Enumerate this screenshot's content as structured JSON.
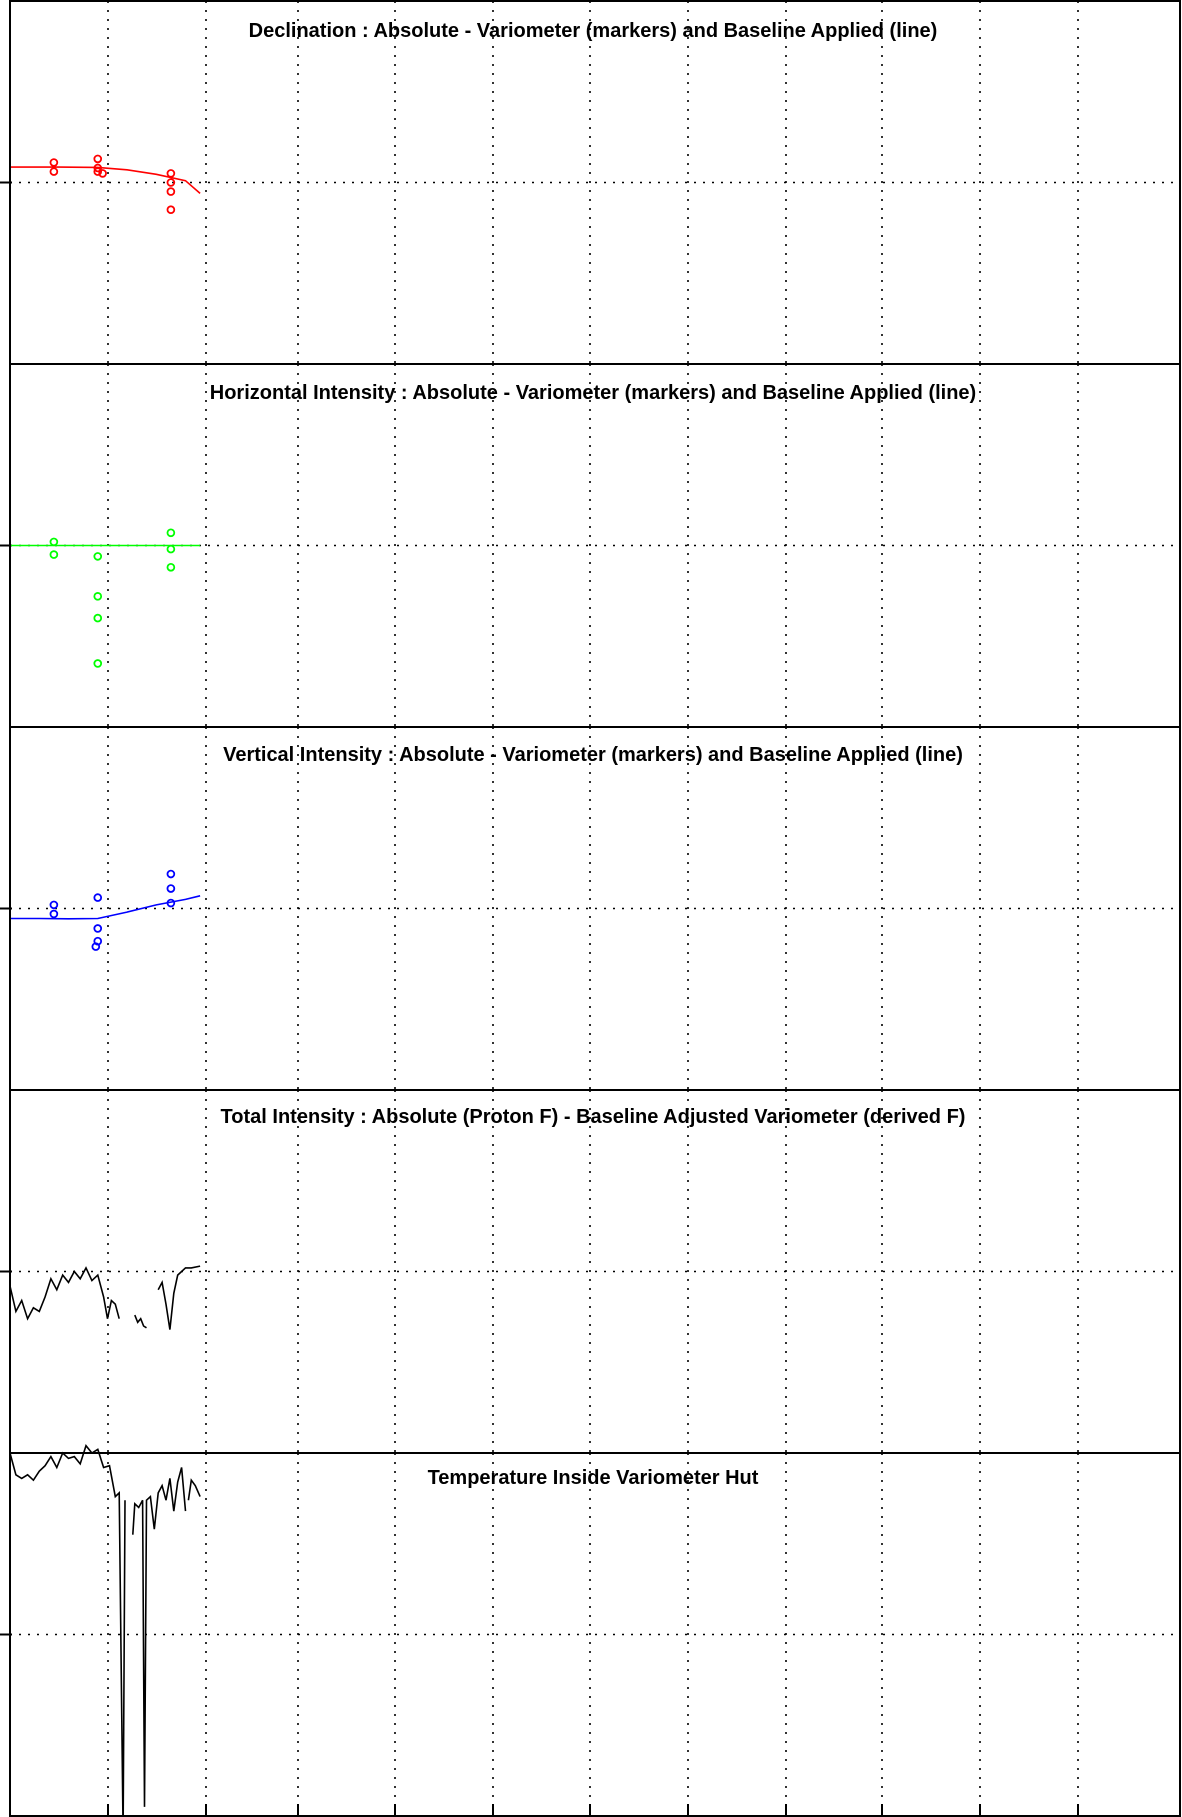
{
  "chart_data": [
    {
      "type": "scatter",
      "title": "Declination : Absolute - Variometer (markers) and Baseline Applied (line)",
      "color": "#ff0000",
      "xlim": [
        0,
        12
      ],
      "ylim": [
        -1,
        1
      ],
      "markers": {
        "x": [
          0.45,
          0.45,
          0.9,
          0.9,
          0.9,
          0.95,
          1.65,
          1.65,
          1.65,
          1.65
        ],
        "y": [
          0.11,
          0.06,
          0.13,
          0.08,
          0.06,
          0.05,
          0.05,
          0.0,
          -0.05,
          -0.15
        ]
      },
      "baseline": {
        "x": [
          0.0,
          0.5,
          0.9,
          1.2,
          1.5,
          1.8,
          1.95
        ],
        "y": [
          0.085,
          0.085,
          0.083,
          0.07,
          0.045,
          0.01,
          -0.06
        ]
      }
    },
    {
      "type": "scatter",
      "title": "Horizontal Intensity : Absolute - Variometer (markers) and Baseline Applied (line)",
      "color": "#00ff00",
      "xlim": [
        0,
        12
      ],
      "ylim": [
        -1,
        1
      ],
      "markers": {
        "x": [
          0.45,
          0.45,
          0.9,
          0.9,
          0.9,
          0.9,
          1.65,
          1.65,
          1.65
        ],
        "y": [
          0.02,
          -0.05,
          -0.06,
          -0.28,
          -0.4,
          -0.65,
          0.07,
          -0.02,
          -0.12
        ]
      },
      "baseline": {
        "x": [
          0.0,
          1.95
        ],
        "y": [
          0.0,
          0.0
        ]
      }
    },
    {
      "type": "scatter",
      "title": "Vertical Intensity : Absolute - Variometer (markers) and Baseline Applied (line)",
      "color": "#0000ff",
      "xlim": [
        0,
        12
      ],
      "ylim": [
        -1,
        1
      ],
      "markers": {
        "x": [
          0.45,
          0.45,
          0.9,
          0.9,
          0.9,
          0.88,
          1.65,
          1.65,
          1.65
        ],
        "y": [
          0.02,
          -0.03,
          0.06,
          -0.11,
          -0.18,
          -0.21,
          0.19,
          0.11,
          0.03
        ]
      },
      "baseline": {
        "x": [
          0.0,
          0.3,
          0.6,
          0.9,
          1.2,
          1.5,
          1.8,
          1.95
        ],
        "y": [
          -0.055,
          -0.055,
          -0.057,
          -0.055,
          -0.02,
          0.02,
          0.05,
          0.07
        ]
      }
    },
    {
      "type": "line",
      "title": "Total Intensity : Absolute (Proton F) - Baseline Adjusted Variometer (derived F)",
      "color": "#000000",
      "xlim": [
        0,
        12
      ],
      "ylim": [
        -1,
        1
      ],
      "segments": [
        {
          "x": [
            0.0,
            0.06,
            0.12,
            0.18,
            0.24,
            0.3,
            0.36,
            0.42,
            0.48,
            0.54,
            0.6,
            0.66,
            0.72,
            0.78,
            0.84,
            0.9,
            0.96,
            1.0,
            1.04,
            1.08,
            1.12
          ],
          "y": [
            -0.08,
            -0.22,
            -0.16,
            -0.26,
            -0.2,
            -0.22,
            -0.14,
            -0.04,
            -0.1,
            -0.02,
            -0.06,
            0.0,
            -0.04,
            0.02,
            -0.05,
            -0.02,
            -0.14,
            -0.26,
            -0.16,
            -0.18,
            -0.26
          ]
        },
        {
          "x": [
            1.28,
            1.31,
            1.34,
            1.37,
            1.4
          ],
          "y": [
            -0.24,
            -0.28,
            -0.26,
            -0.3,
            -0.31
          ]
        },
        {
          "x": [
            1.52,
            1.56,
            1.6,
            1.64,
            1.68,
            1.72,
            1.76,
            1.8,
            1.86,
            1.95
          ],
          "y": [
            -0.1,
            -0.06,
            -0.18,
            -0.32,
            -0.12,
            -0.02,
            0.0,
            0.02,
            0.02,
            0.03
          ]
        }
      ]
    },
    {
      "type": "line",
      "title": "Temperature Inside Variometer Hut",
      "color": "#000000",
      "xlim": [
        0,
        12
      ],
      "ylim": [
        -1,
        1
      ],
      "segments": [
        {
          "x": [
            0.0,
            0.06,
            0.12,
            0.18,
            0.24,
            0.3,
            0.36,
            0.42,
            0.48,
            0.54,
            0.6,
            0.66,
            0.72,
            0.78,
            0.84,
            0.9,
            0.96,
            1.02,
            1.08,
            1.12,
            1.16,
            1.18
          ],
          "y": [
            1.0,
            0.88,
            0.86,
            0.88,
            0.85,
            0.9,
            0.93,
            0.98,
            0.92,
            1.0,
            0.97,
            0.98,
            0.94,
            1.04,
            1.0,
            1.02,
            0.92,
            0.93,
            0.76,
            0.78,
            -1.1,
            0.74
          ]
        },
        {
          "x": [
            1.26,
            1.28,
            1.32,
            1.36,
            1.38,
            1.4,
            1.44,
            1.48,
            1.52,
            1.56,
            1.6,
            1.64,
            1.68,
            1.72,
            1.76,
            1.8
          ],
          "y": [
            0.55,
            0.72,
            0.7,
            0.74,
            -0.95,
            0.74,
            0.76,
            0.58,
            0.78,
            0.82,
            0.74,
            0.86,
            0.68,
            0.84,
            0.92,
            0.68
          ]
        },
        {
          "x": [
            1.83,
            1.86,
            1.9,
            1.95
          ],
          "y": [
            0.74,
            0.85,
            0.82,
            0.76
          ]
        }
      ]
    }
  ]
}
